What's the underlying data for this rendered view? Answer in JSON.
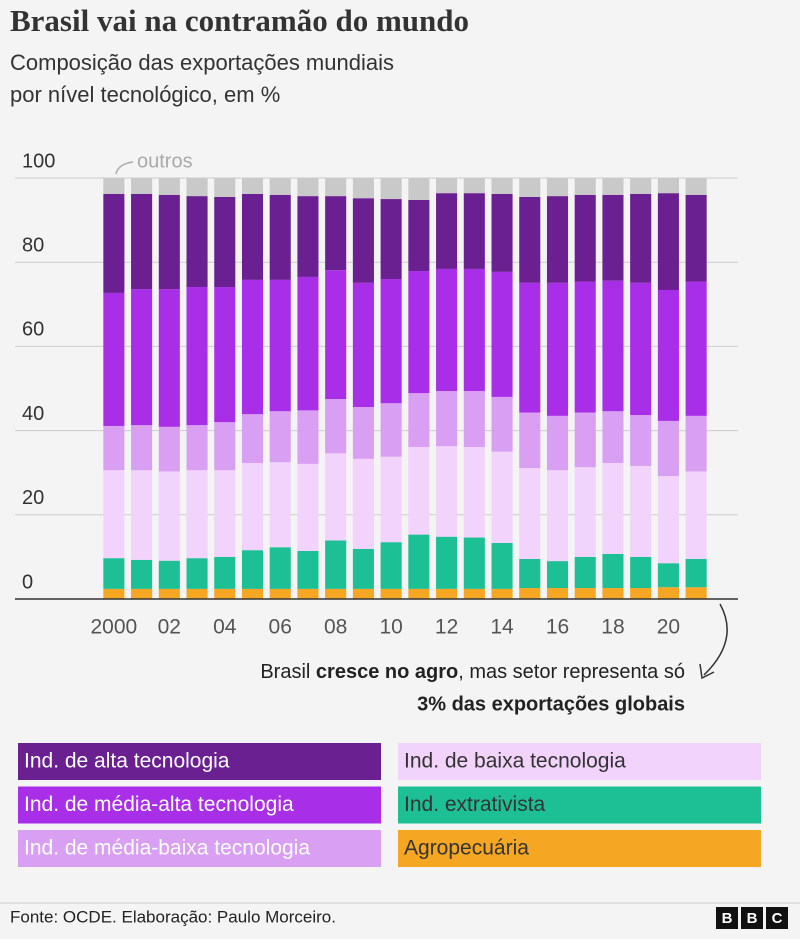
{
  "chart_data": {
    "type": "stacked_bar",
    "title": "Brasil vai na contramão do mundo",
    "subtitle": [
      "Composição das exportações mundiais",
      "por nível tecnológico, em %"
    ],
    "categories": [
      "2000",
      null,
      "02",
      null,
      "04",
      null,
      "06",
      null,
      "08",
      null,
      "10",
      null,
      "12",
      null,
      "14",
      null,
      "16",
      null,
      "18",
      null,
      "20",
      null
    ],
    "ylim": [
      0,
      100
    ],
    "yticks": [
      0,
      20,
      40,
      60,
      80,
      100
    ],
    "grid": true,
    "series": [
      {
        "name": "Agropecuária",
        "color": "#f5a623",
        "values": [
          2.4,
          2.4,
          2.4,
          2.4,
          2.4,
          2.4,
          2.4,
          2.4,
          2.4,
          2.4,
          2.4,
          2.4,
          2.4,
          2.4,
          2.4,
          2.6,
          2.6,
          2.6,
          2.6,
          2.6,
          2.8,
          2.8
        ]
      },
      {
        "name": "Ind. extrativista",
        "color": "#1dbf95",
        "values": [
          7.3,
          6.9,
          6.7,
          7.3,
          7.6,
          9.2,
          9.9,
          9.0,
          11.5,
          9.5,
          11.1,
          12.9,
          12.4,
          12.2,
          10.9,
          6.9,
          6.4,
          7.4,
          8.1,
          7.4,
          5.7,
          6.7
        ]
      },
      {
        "name": "Ind. de baixa tecnologia",
        "color": "#f2d3fb",
        "values": [
          20.9,
          21.3,
          21.2,
          20.9,
          20.6,
          20.7,
          20.2,
          20.7,
          20.7,
          21.4,
          20.3,
          20.8,
          21.5,
          21.5,
          21.7,
          21.6,
          21.6,
          21.3,
          21.6,
          21.6,
          20.7,
          20.8
        ]
      },
      {
        "name": "Ind. de média-baixa tecnologia",
        "color": "#d89ff2",
        "values": [
          10.5,
          10.7,
          10.6,
          10.7,
          11.4,
          11.6,
          12.1,
          12.7,
          12.9,
          12.3,
          12.7,
          12.8,
          13.1,
          13.3,
          13.0,
          13.2,
          12.9,
          13.0,
          12.3,
          12.1,
          13.1,
          13.2
        ]
      },
      {
        "name": "Ind. de média-alta tecnologia",
        "color": "#a92ee8",
        "values": [
          31.6,
          32.3,
          32.7,
          32.8,
          32.1,
          31.9,
          31.2,
          31.7,
          30.6,
          29.5,
          29.5,
          29.0,
          29.0,
          29.0,
          29.7,
          30.8,
          31.6,
          31.1,
          31.0,
          31.4,
          31.1,
          31.9
        ]
      },
      {
        "name": "Ind. de alta tecnologia",
        "color": "#6a2090",
        "values": [
          23.5,
          22.6,
          22.4,
          21.6,
          21.4,
          20.4,
          20.2,
          19.2,
          17.6,
          20.1,
          19.0,
          16.9,
          18.0,
          18.0,
          18.5,
          20.4,
          20.6,
          20.6,
          20.4,
          21.1,
          23.0,
          20.6
        ]
      }
    ],
    "other": {
      "name": "outros",
      "color": "#c9c9c9",
      "values": [
        3.8,
        3.8,
        4.0,
        4.3,
        4.5,
        3.8,
        4.0,
        4.3,
        4.3,
        4.8,
        5.0,
        5.2,
        3.6,
        3.6,
        3.8,
        4.5,
        4.3,
        4.0,
        4.0,
        3.8,
        3.6,
        4.0
      ]
    },
    "annotation": {
      "parts": [
        "Brasil",
        "cresce no agro",
        ", mas setor representa só"
      ],
      "line2": "3% das exportações globais"
    },
    "source": "Fonte: OCDE. Elaboração: Paulo Morceiro.",
    "logo": [
      "B",
      "B",
      "C"
    ]
  }
}
